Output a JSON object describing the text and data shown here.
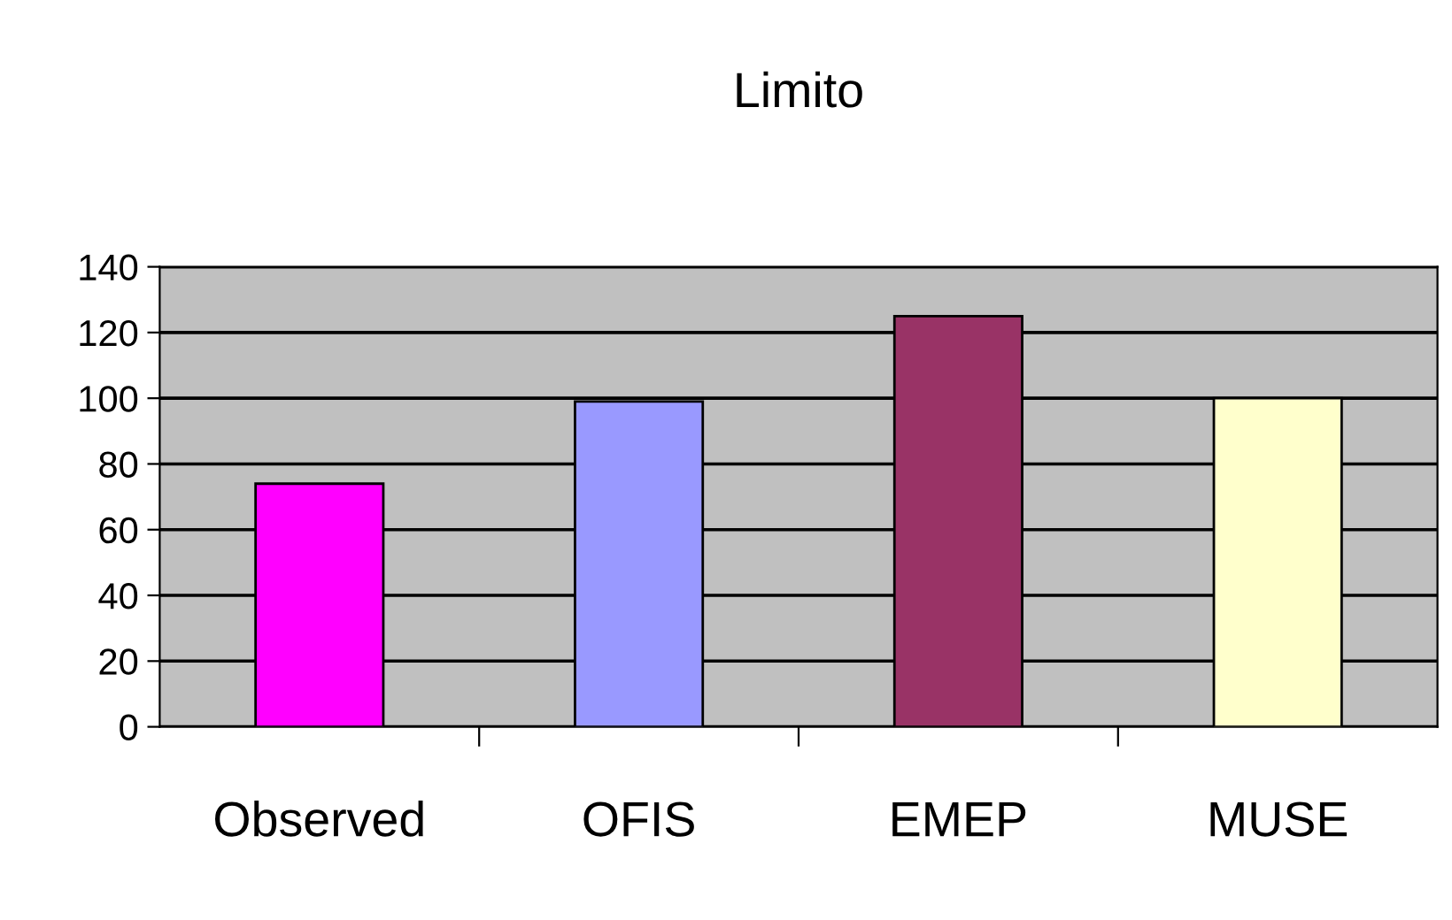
{
  "chart_data": {
    "type": "bar",
    "title": "Limito",
    "categories": [
      "Observed",
      "OFIS",
      "EMEP",
      "MUSE"
    ],
    "values": [
      74,
      99,
      125,
      100
    ],
    "colors": [
      "#ff00ff",
      "#9999ff",
      "#993366",
      "#ffffcc"
    ],
    "ylim": [
      0,
      140
    ],
    "yticks": [
      0,
      20,
      40,
      60,
      80,
      100,
      120,
      140
    ],
    "grid": "y"
  }
}
